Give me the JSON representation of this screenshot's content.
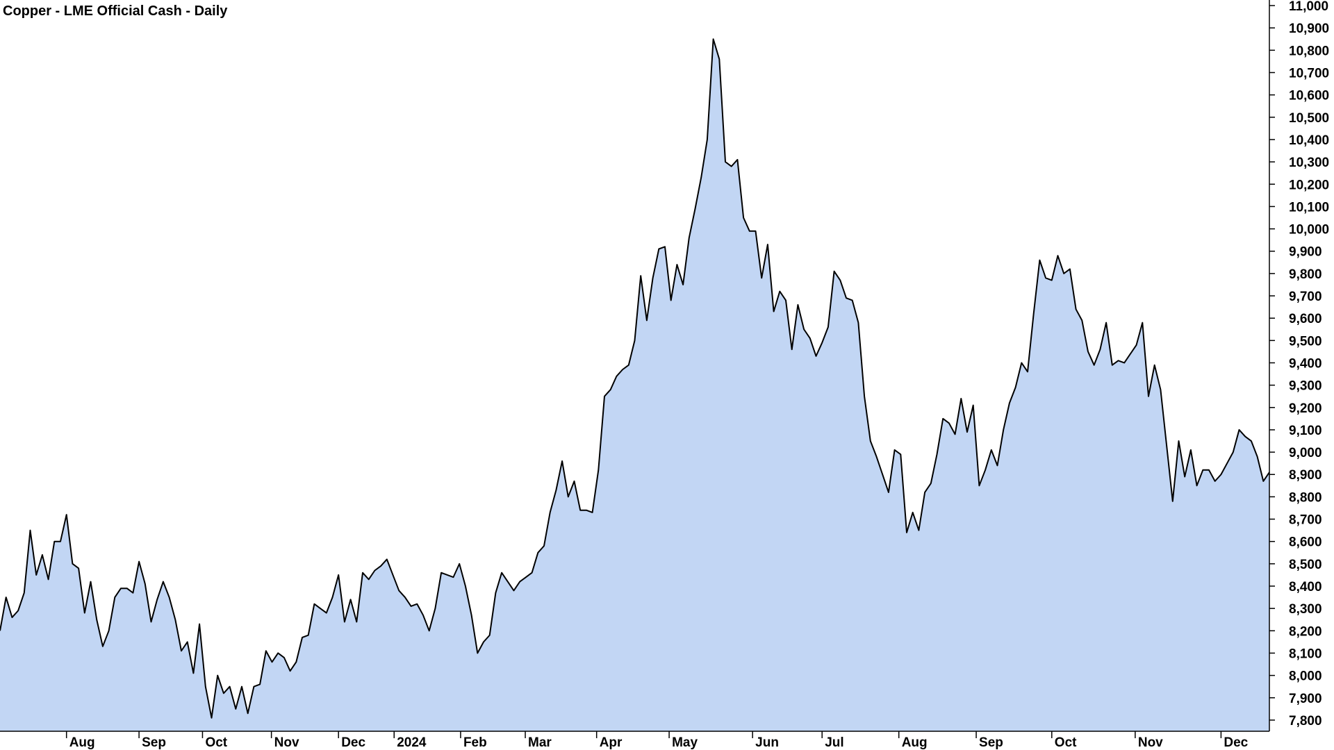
{
  "chart_data": {
    "type": "area",
    "title": "Copper - LME Official Cash - Daily",
    "color": "#c2d6f4",
    "line_color": "#000000",
    "values": [
      8200,
      8350,
      8260,
      8290,
      8370,
      8650,
      8450,
      8540,
      8430,
      8600,
      8600,
      8720,
      8500,
      8480,
      8280,
      8420,
      8250,
      8130,
      8200,
      8350,
      8390,
      8390,
      8370,
      8510,
      8410,
      8240,
      8340,
      8420,
      8350,
      8250,
      8110,
      8150,
      8010,
      8230,
      7950,
      7810,
      8000,
      7920,
      7950,
      7850,
      7950,
      7830,
      7950,
      7960,
      8110,
      8060,
      8100,
      8080,
      8020,
      8060,
      8170,
      8180,
      8320,
      8300,
      8280,
      8350,
      8450,
      8240,
      8340,
      8240,
      8460,
      8430,
      8470,
      8490,
      8520,
      8450,
      8380,
      8350,
      8310,
      8320,
      8270,
      8200,
      8300,
      8460,
      8450,
      8440,
      8500,
      8400,
      8270,
      8100,
      8150,
      8180,
      8370,
      8460,
      8420,
      8380,
      8420,
      8440,
      8460,
      8550,
      8580,
      8730,
      8830,
      8960,
      8800,
      8870,
      8740,
      8740,
      8730,
      8920,
      9250,
      9280,
      9340,
      9370,
      9390,
      9500,
      9790,
      9590,
      9780,
      9910,
      9920,
      9680,
      9840,
      9750,
      9960,
      10090,
      10230,
      10400,
      10850,
      10760,
      10300,
      10280,
      10310,
      10050,
      9990,
      9990,
      9780,
      9930,
      9630,
      9720,
      9680,
      9460,
      9660,
      9550,
      9510,
      9430,
      9490,
      9560,
      9810,
      9770,
      9690,
      9680,
      9580,
      9250,
      9050,
      8980,
      8900,
      8820,
      9010,
      8990,
      8640,
      8730,
      8650,
      8820,
      8860,
      8990,
      9150,
      9130,
      9080,
      9240,
      9090,
      9210,
      8850,
      8920,
      9010,
      8940,
      9100,
      9220,
      9290,
      9400,
      9360,
      9620,
      9860,
      9780,
      9770,
      9880,
      9800,
      9820,
      9640,
      9590,
      9450,
      9390,
      9460,
      9580,
      9390,
      9410,
      9400,
      9440,
      9480,
      9580,
      9250,
      9390,
      9280,
      9030,
      8780,
      9050,
      8890,
      9010,
      8850,
      8920,
      8920,
      8870,
      8900,
      8950,
      9000,
      9100,
      9070,
      9050,
      8980,
      8870,
      8910
    ],
    "xlim": [
      0,
      210
    ],
    "xticks": [
      {
        "value": 11,
        "label": "Aug"
      },
      {
        "value": 23,
        "label": "Sep"
      },
      {
        "value": 33.5,
        "label": "Oct"
      },
      {
        "value": 44.9,
        "label": "Nov"
      },
      {
        "value": 56,
        "label": "Dec"
      },
      {
        "value": 65.2,
        "label": "2024"
      },
      {
        "value": 76.2,
        "label": "Feb"
      },
      {
        "value": 86.9,
        "label": "Mar"
      },
      {
        "value": 98.7,
        "label": "Apr"
      },
      {
        "value": 110.7,
        "label": "May"
      },
      {
        "value": 124.5,
        "label": "Jun"
      },
      {
        "value": 136,
        "label": "Jul"
      },
      {
        "value": 148.7,
        "label": "Aug"
      },
      {
        "value": 161.5,
        "label": "Sep"
      },
      {
        "value": 174,
        "label": "Oct"
      },
      {
        "value": 187.8,
        "label": "Nov"
      },
      {
        "value": 202,
        "label": "Dec"
      }
    ],
    "ylim": [
      7750,
      11025
    ],
    "yticks": [
      {
        "value": 7800,
        "label": "7,800"
      },
      {
        "value": 7900,
        "label": "7,900"
      },
      {
        "value": 8000,
        "label": "8,000"
      },
      {
        "value": 8100,
        "label": "8,100"
      },
      {
        "value": 8200,
        "label": "8,200"
      },
      {
        "value": 8300,
        "label": "8,300"
      },
      {
        "value": 8400,
        "label": "8,400"
      },
      {
        "value": 8500,
        "label": "8,500"
      },
      {
        "value": 8600,
        "label": "8,600"
      },
      {
        "value": 8700,
        "label": "8,700"
      },
      {
        "value": 8800,
        "label": "8,800"
      },
      {
        "value": 8900,
        "label": "8,900"
      },
      {
        "value": 9000,
        "label": "9,000"
      },
      {
        "value": 9100,
        "label": "9,100"
      },
      {
        "value": 9200,
        "label": "9,200"
      },
      {
        "value": 9300,
        "label": "9,300"
      },
      {
        "value": 9400,
        "label": "9,400"
      },
      {
        "value": 9500,
        "label": "9,500"
      },
      {
        "value": 9600,
        "label": "9,600"
      },
      {
        "value": 9700,
        "label": "9,700"
      },
      {
        "value": 9800,
        "label": "9,800"
      },
      {
        "value": 9900,
        "label": "9,900"
      },
      {
        "value": 10000,
        "label": "10,000"
      },
      {
        "value": 10100,
        "label": "10,100"
      },
      {
        "value": 10200,
        "label": "10,200"
      },
      {
        "value": 10300,
        "label": "10,300"
      },
      {
        "value": 10400,
        "label": "10,400"
      },
      {
        "value": 10500,
        "label": "10,500"
      },
      {
        "value": 10600,
        "label": "10,600"
      },
      {
        "value": 10700,
        "label": "10,700"
      },
      {
        "value": 10800,
        "label": "10,800"
      },
      {
        "value": 10900,
        "label": "10,900"
      },
      {
        "value": 11000,
        "label": "11,000"
      }
    ],
    "y_axis_side": "right",
    "grid": false
  }
}
